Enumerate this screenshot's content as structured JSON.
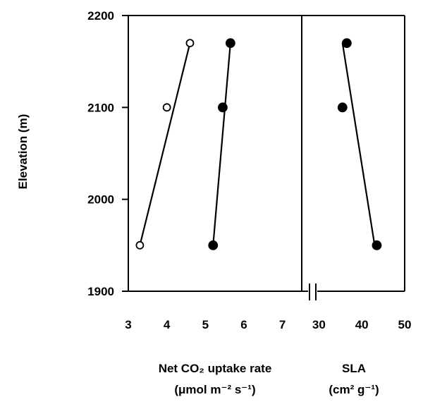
{
  "chart_data": [
    {
      "panel": "left",
      "type": "scatter",
      "xlim": [
        3,
        7.5
      ],
      "ylim": [
        1900,
        2200
      ],
      "x_ticks": [
        "3",
        "4",
        "5",
        "6",
        "7"
      ],
      "y_ticks": [
        "1900",
        "2000",
        "2100",
        "2200"
      ],
      "ylabel": "Elevation (m)",
      "xlabel": "Net CO₂ uptake rate",
      "xlabel_unit": "(μmol m⁻² s⁻¹)",
      "series": [
        {
          "marker": "open-circle",
          "points": [
            {
              "x": 3.3,
              "y": 1950
            },
            {
              "x": 4.0,
              "y": 2100
            },
            {
              "x": 4.6,
              "y": 2170
            }
          ],
          "fit": [
            {
              "x": 3.3,
              "y": 1950
            },
            {
              "x": 4.6,
              "y": 2170
            }
          ]
        },
        {
          "marker": "filled-circle",
          "points": [
            {
              "x": 5.2,
              "y": 1950
            },
            {
              "x": 5.45,
              "y": 2100
            },
            {
              "x": 5.65,
              "y": 2170
            }
          ],
          "fit": [
            {
              "x": 5.2,
              "y": 1950
            },
            {
              "x": 5.65,
              "y": 2170
            }
          ]
        }
      ],
      "grid": false
    },
    {
      "panel": "right",
      "type": "scatter",
      "xlim": [
        26,
        50
      ],
      "ylim": [
        1900,
        2200
      ],
      "x_ticks": [
        "30",
        "40",
        "50"
      ],
      "xlabel": "SLA",
      "xlabel_unit": "(cm² g⁻¹)",
      "axis_break": true,
      "series": [
        {
          "marker": "filled-circle",
          "points": [
            {
              "x": 36.5,
              "y": 2170
            },
            {
              "x": 35.5,
              "y": 2100
            },
            {
              "x": 43.5,
              "y": 1950
            }
          ],
          "fit": [
            {
              "x": 35.5,
              "y": 2170
            },
            {
              "x": 43.0,
              "y": 1950
            }
          ]
        }
      ],
      "grid": false
    }
  ]
}
